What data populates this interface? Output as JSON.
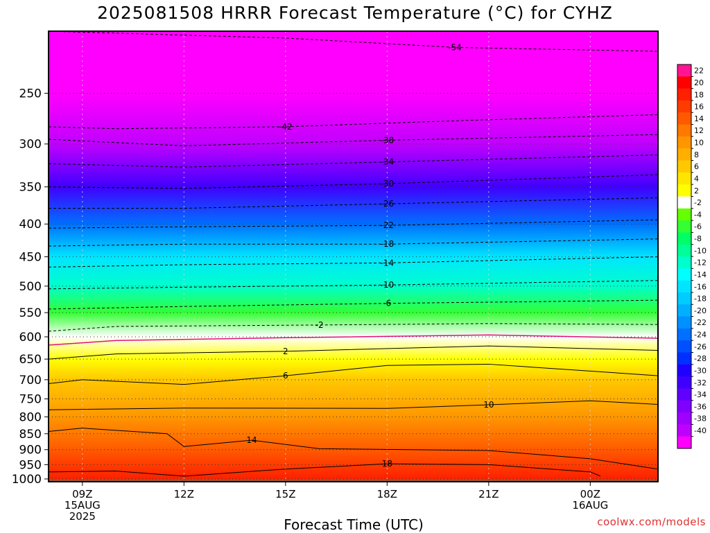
{
  "title": "2025081508 HRRR Forecast Temperature (°C) for CYHZ",
  "xlabel": "Forecast Time (UTC)",
  "credit": "coolwx.com/models",
  "chart_data": {
    "type": "heatmap",
    "title": "2025081508 HRRR Forecast Temperature (°C) for CYHZ",
    "xlabel": "Forecast Time (UTC)",
    "ylabel": "",
    "x_ticks": [
      {
        "hour": 9,
        "lines": [
          "09Z",
          "15AUG",
          "2025"
        ]
      },
      {
        "hour": 12,
        "lines": [
          "12Z"
        ]
      },
      {
        "hour": 15,
        "lines": [
          "15Z"
        ]
      },
      {
        "hour": 18,
        "lines": [
          "18Z"
        ]
      },
      {
        "hour": 21,
        "lines": [
          "21Z"
        ]
      },
      {
        "hour": 24,
        "lines": [
          "00Z",
          "16AUG"
        ]
      }
    ],
    "xlim": [
      8,
      26
    ],
    "y_ticks": [
      "250",
      "300",
      "350",
      "400",
      "450",
      "500",
      "550",
      "600",
      "650",
      "700",
      "750",
      "800",
      "850",
      "900",
      "950",
      "1000"
    ],
    "ylim": [
      200,
      1010
    ],
    "y_scale": "log",
    "colorbar_labels": [
      "22",
      "20",
      "18",
      "16",
      "14",
      "12",
      "10",
      "8",
      "6",
      "4",
      "2",
      "-2",
      "-4",
      "-6",
      "-8",
      "-10",
      "-12",
      "-14",
      "-16",
      "-18",
      "-20",
      "-22",
      "-24",
      "-26",
      "-28",
      "-30",
      "-32",
      "-34",
      "-36",
      "-38",
      "-40"
    ],
    "colorbar_colors": [
      "#ff1493",
      "#ff0000",
      "#ff2000",
      "#ff3c00",
      "#ff5a00",
      "#ff7800",
      "#ff9600",
      "#ffaf00",
      "#ffc800",
      "#ffe600",
      "#ffff00",
      "#ffffff",
      "#66ff00",
      "#33ff33",
      "#00ff66",
      "#00ff99",
      "#00ffcc",
      "#00ffff",
      "#00e5ff",
      "#00ccff",
      "#00b0ff",
      "#0090ff",
      "#0070ff",
      "#0050ff",
      "#0030ff",
      "#2000ff",
      "#4000ff",
      "#6000ff",
      "#8000ff",
      "#a000ff",
      "#c000ff",
      "#ff00ff"
    ],
    "temperature_levels": [
      {
        "p": 200,
        "t": -56
      },
      {
        "p": 250,
        "t": -46
      },
      {
        "p": 300,
        "t": -39
      },
      {
        "p": 350,
        "t": -31
      },
      {
        "p": 400,
        "t": -23
      },
      {
        "p": 450,
        "t": -15
      },
      {
        "p": 500,
        "t": -10
      },
      {
        "p": 550,
        "t": -5
      },
      {
        "p": 600,
        "t": 0
      },
      {
        "p": 650,
        "t": 3
      },
      {
        "p": 700,
        "t": 7
      },
      {
        "p": 750,
        "t": 9
      },
      {
        "p": 800,
        "t": 11
      },
      {
        "p": 850,
        "t": 13
      },
      {
        "p": 900,
        "t": 15
      },
      {
        "p": 950,
        "t": 17
      },
      {
        "p": 1000,
        "t": 19
      }
    ],
    "contours": [
      {
        "label": "-54",
        "style": "dashed",
        "points": [
          [
            8,
            200
          ],
          [
            15,
            205
          ],
          [
            20,
            212
          ],
          [
            26,
            215
          ]
        ]
      },
      {
        "label": "-42",
        "style": "dashed",
        "points": [
          [
            8,
            282
          ],
          [
            10,
            284
          ],
          [
            15,
            282
          ],
          [
            20,
            276
          ],
          [
            26,
            270
          ]
        ]
      },
      {
        "label": "-38",
        "style": "dashed",
        "points": [
          [
            8,
            295
          ],
          [
            12,
            302
          ],
          [
            18,
            296
          ],
          [
            26,
            290
          ]
        ]
      },
      {
        "label": "-34",
        "style": "dashed",
        "points": [
          [
            8,
            322
          ],
          [
            12,
            326
          ],
          [
            18,
            320
          ],
          [
            26,
            312
          ]
        ]
      },
      {
        "label": "-30",
        "style": "dashed",
        "points": [
          [
            8,
            350
          ],
          [
            12,
            352
          ],
          [
            18,
            346
          ],
          [
            26,
            335
          ]
        ]
      },
      {
        "label": "-26",
        "style": "dashed",
        "points": [
          [
            8,
            378
          ],
          [
            12,
            378
          ],
          [
            18,
            372
          ],
          [
            26,
            364
          ]
        ]
      },
      {
        "label": "-22",
        "style": "dashed",
        "points": [
          [
            8,
            406
          ],
          [
            12,
            404
          ],
          [
            18,
            402
          ],
          [
            26,
            394
          ]
        ]
      },
      {
        "label": "-18",
        "style": "dashed",
        "points": [
          [
            8,
            433
          ],
          [
            12,
            430
          ],
          [
            18,
            430
          ],
          [
            26,
            422
          ]
        ]
      },
      {
        "label": "-14",
        "style": "dashed",
        "points": [
          [
            8,
            467
          ],
          [
            12,
            463
          ],
          [
            18,
            460
          ],
          [
            26,
            450
          ]
        ]
      },
      {
        "label": "-10",
        "style": "dashed",
        "points": [
          [
            8,
            505
          ],
          [
            12,
            502
          ],
          [
            18,
            498
          ],
          [
            26,
            490
          ]
        ]
      },
      {
        "label": "-6",
        "style": "dashed",
        "points": [
          [
            8,
            543
          ],
          [
            12,
            538
          ],
          [
            18,
            532
          ],
          [
            26,
            526
          ]
        ]
      },
      {
        "label": "-2",
        "style": "dashed",
        "points": [
          [
            8,
            588
          ],
          [
            10,
            578
          ],
          [
            16,
            575
          ],
          [
            21,
            572
          ],
          [
            26,
            574
          ]
        ]
      },
      {
        "label": "2",
        "style": "solid",
        "points": [
          [
            8,
            650
          ],
          [
            10,
            638
          ],
          [
            15,
            632
          ],
          [
            21,
            620
          ],
          [
            26,
            630
          ]
        ]
      },
      {
        "label": "6",
        "style": "solid",
        "points": [
          [
            8,
            710
          ],
          [
            9,
            700
          ],
          [
            12,
            712
          ],
          [
            15,
            690
          ],
          [
            18,
            665
          ],
          [
            21,
            662
          ],
          [
            26,
            690
          ]
        ]
      },
      {
        "label": "10",
        "style": "solid",
        "points": [
          [
            8,
            780
          ],
          [
            12,
            775
          ],
          [
            18,
            776
          ],
          [
            21,
            766
          ],
          [
            24,
            755
          ],
          [
            26,
            765
          ]
        ]
      },
      {
        "label": "14",
        "style": "solid",
        "points": [
          [
            8,
            843
          ],
          [
            9,
            833
          ],
          [
            11.5,
            850
          ],
          [
            12,
            890
          ],
          [
            14,
            870
          ],
          [
            16,
            897
          ],
          [
            21,
            903
          ],
          [
            24,
            930
          ],
          [
            26,
            965
          ]
        ]
      },
      {
        "label": "18",
        "style": "solid",
        "points": [
          [
            8,
            975
          ],
          [
            10,
            972
          ],
          [
            12,
            990
          ],
          [
            15,
            965
          ],
          [
            18,
            947
          ],
          [
            21,
            950
          ],
          [
            24,
            975
          ],
          [
            24.3,
            990
          ]
        ]
      }
    ]
  }
}
